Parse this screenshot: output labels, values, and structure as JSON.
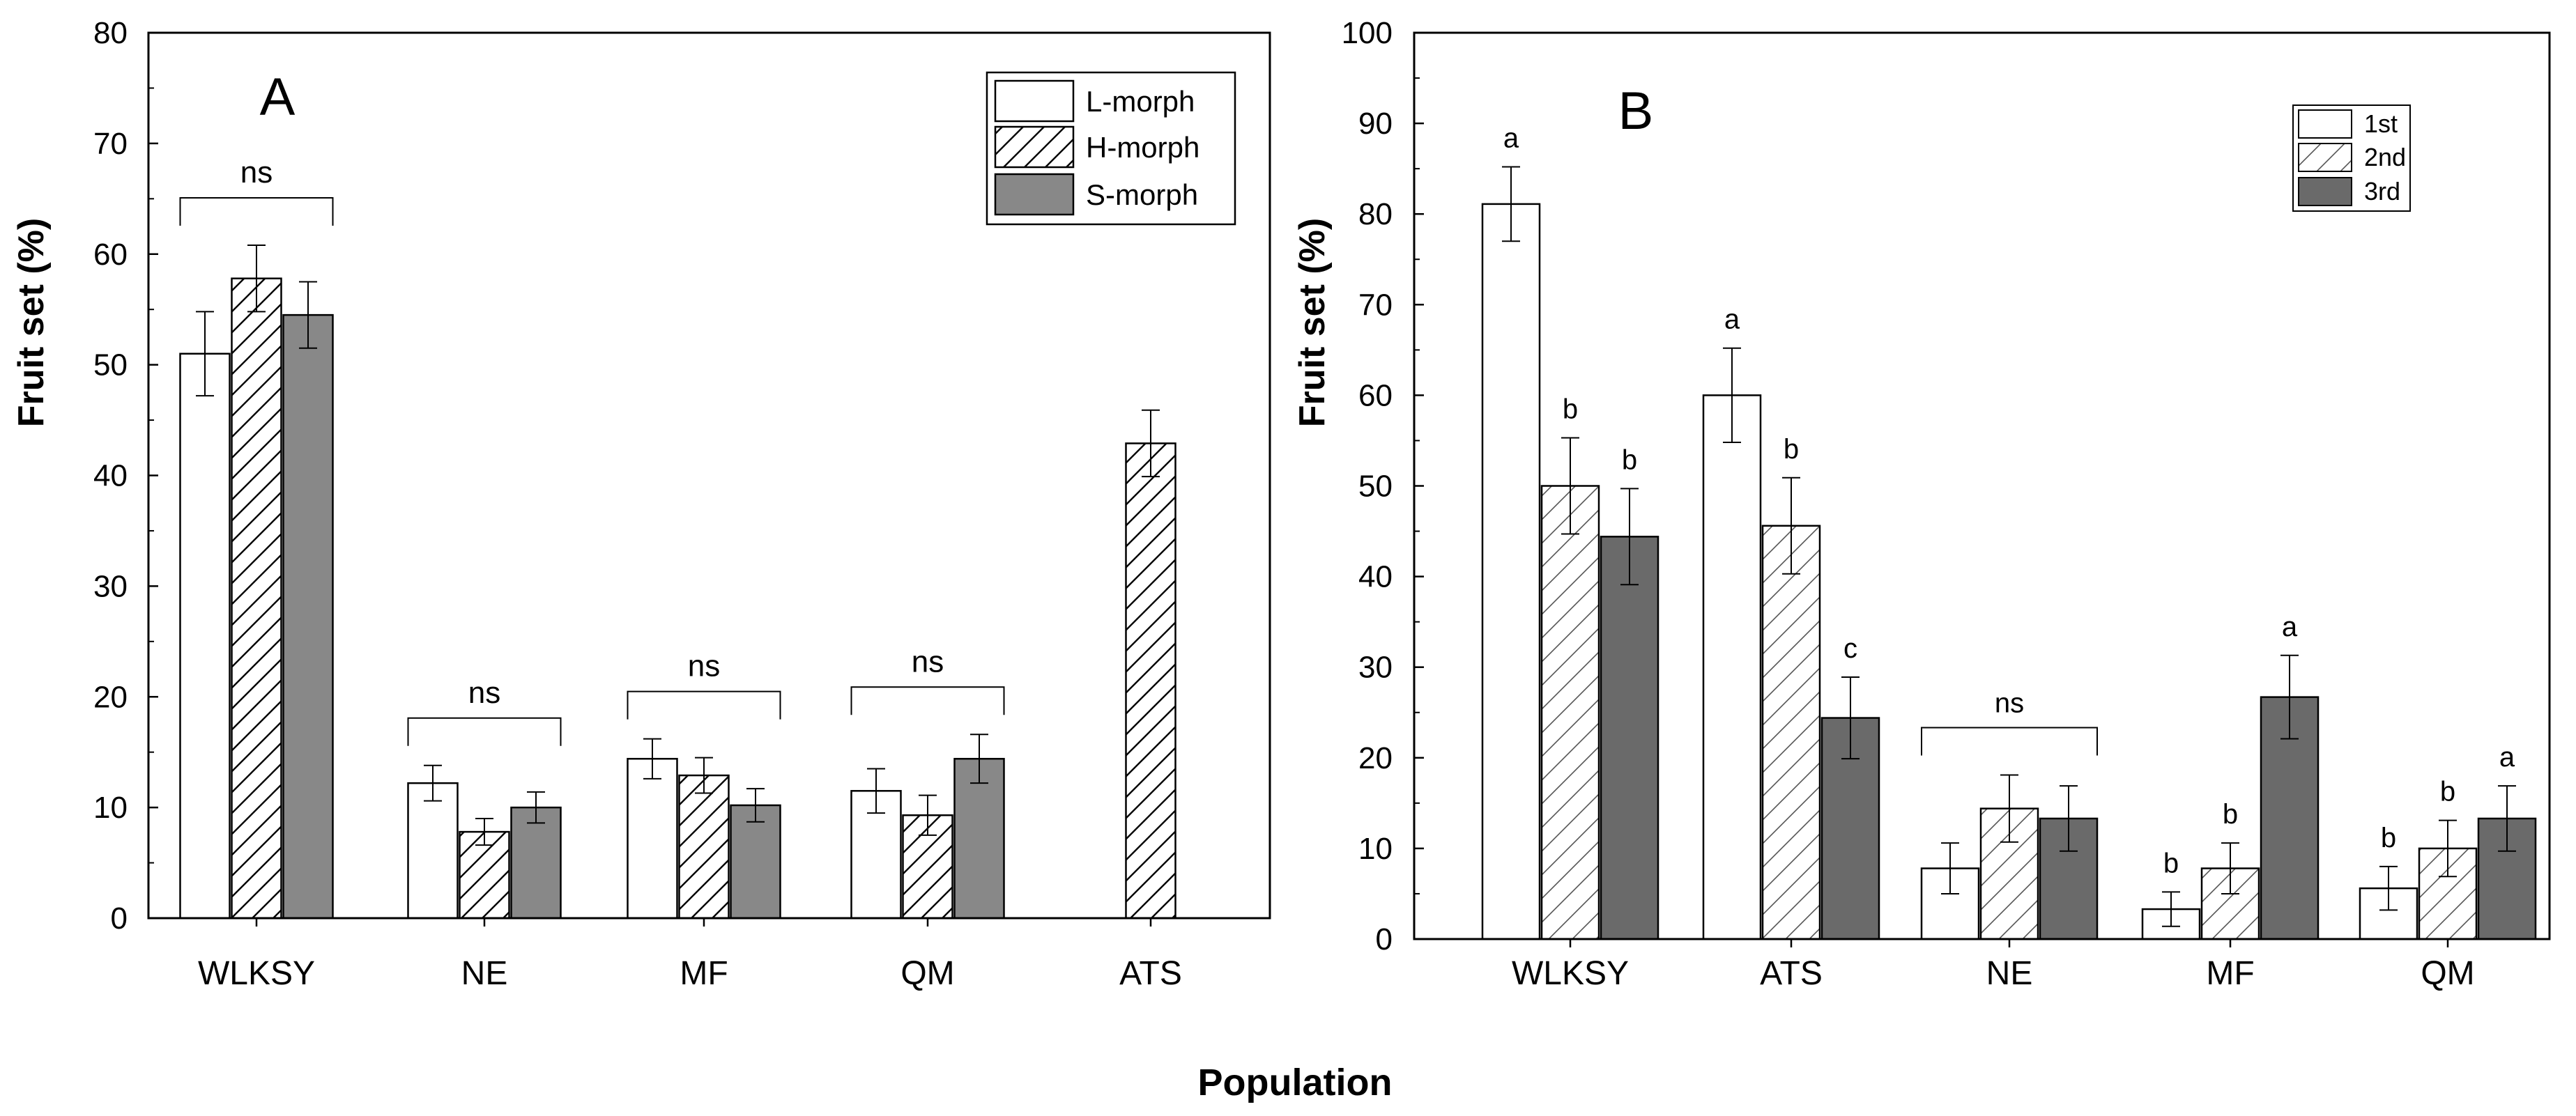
{
  "figure": {
    "shared_xlabel": "Population"
  },
  "chart_data": [
    {
      "id": "A",
      "type": "bar",
      "panel_label": "A",
      "xlabel": "",
      "ylabel": "Fruit set (%)",
      "ylim": [
        0,
        80
      ],
      "yticks": [
        "0",
        "10",
        "20",
        "30",
        "40",
        "50",
        "60",
        "70",
        "80"
      ],
      "categories": [
        "WLKSY",
        "NE",
        "MF",
        "QM",
        "ATS"
      ],
      "series": [
        {
          "name": "L-morph",
          "pattern": "open",
          "values": [
            51,
            12.2,
            14.4,
            11.5,
            null
          ],
          "errors": [
            3.8,
            1.6,
            1.8,
            2.0,
            null
          ]
        },
        {
          "name": "H-morph",
          "pattern": "hatch",
          "values": [
            57.8,
            7.8,
            12.9,
            9.3,
            42.9
          ],
          "errors": [
            3.0,
            1.2,
            1.6,
            1.8,
            3.0
          ]
        },
        {
          "name": "S-morph",
          "pattern": "gray",
          "values": [
            54.5,
            10.0,
            10.2,
            14.4,
            null
          ],
          "errors": [
            3.0,
            1.4,
            1.5,
            2.2,
            null
          ]
        }
      ],
      "group_annotations": [
        {
          "category": "WLKSY",
          "text": "ns",
          "bracket": true
        },
        {
          "category": "NE",
          "text": "ns",
          "bracket": true
        },
        {
          "category": "MF",
          "text": "ns",
          "bracket": true
        },
        {
          "category": "QM",
          "text": "ns",
          "bracket": true
        }
      ],
      "legend_position": "top-right"
    },
    {
      "id": "B",
      "type": "bar",
      "panel_label": "B",
      "xlabel": "",
      "ylabel": "Fruit set (%)",
      "ylim": [
        0,
        100
      ],
      "yticks": [
        "0",
        "10",
        "20",
        "30",
        "40",
        "50",
        "60",
        "70",
        "80",
        "90",
        "100"
      ],
      "categories": [
        "WLKSY",
        "ATS",
        "NE",
        "MF",
        "QM"
      ],
      "series": [
        {
          "name": "1st",
          "pattern": "open",
          "values": [
            81.1,
            60.0,
            7.8,
            3.3,
            5.6
          ],
          "errors": [
            4.1,
            5.2,
            2.8,
            1.9,
            2.4
          ],
          "labels": [
            "a",
            "a",
            "",
            "b",
            "b"
          ]
        },
        {
          "name": "2nd",
          "pattern": "hatch",
          "values": [
            50.0,
            45.6,
            14.4,
            7.8,
            10.0
          ],
          "errors": [
            5.3,
            5.3,
            3.7,
            2.8,
            3.1
          ],
          "labels": [
            "b",
            "b",
            "",
            "b",
            "b"
          ]
        },
        {
          "name": "3rd",
          "pattern": "dark",
          "values": [
            44.4,
            24.4,
            13.3,
            26.7,
            13.3
          ],
          "errors": [
            5.3,
            4.5,
            3.6,
            4.6,
            3.6
          ],
          "labels": [
            "b",
            "c",
            "",
            "a",
            "a"
          ]
        }
      ],
      "group_annotations": [
        {
          "category": "NE",
          "text": "ns",
          "bracket": true
        }
      ],
      "legend_position": "top-right"
    }
  ]
}
